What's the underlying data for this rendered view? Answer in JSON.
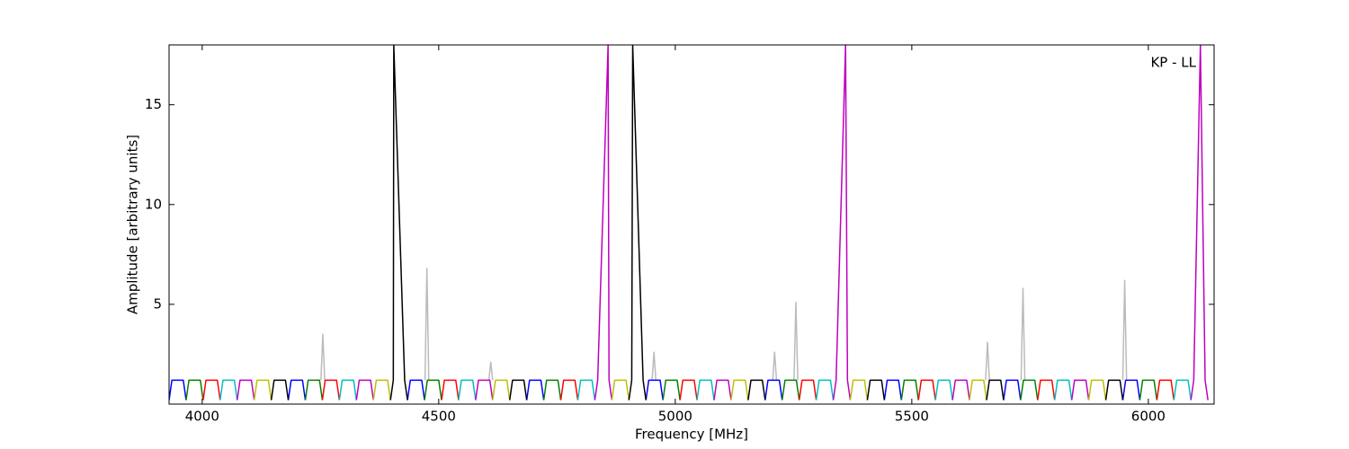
{
  "chart_data": {
    "type": "line",
    "annotation": "KP - LL",
    "x_label": "Frequency [MHz]",
    "y_label": "Amplitude [arbitrary units]",
    "xlim": [
      3930,
      6139
    ],
    "ylim": [
      0,
      18
    ],
    "xticks": [
      4000,
      4500,
      5000,
      5500,
      6000
    ],
    "yticks": [
      5,
      10,
      15
    ],
    "series": [
      {
        "color": "#bbbbbb",
        "x": [
          4251,
          4255,
          4259,
          4259,
          4471,
          4475,
          4479,
          4479,
          4606,
          4610,
          4614,
          4614,
          4951,
          4955,
          4959,
          4959,
          5206,
          5210,
          5214,
          5214,
          5251,
          5255,
          5259,
          5259,
          5656,
          5660,
          5664,
          5664,
          5731,
          5735,
          5739,
          5739,
          5946,
          5950,
          5954
        ],
        "values": [
          1.2,
          3.5,
          1.2,
          null,
          1.2,
          6.8,
          1.2,
          null,
          1.2,
          2.1,
          1.2,
          null,
          1.2,
          2.6,
          1.2,
          null,
          1.2,
          2.6,
          1.2,
          null,
          1.2,
          5.1,
          1.2,
          null,
          1.2,
          3.1,
          1.2,
          null,
          1.2,
          5.8,
          1.2,
          null,
          1.2,
          6.2,
          1.2
        ]
      },
      {
        "color": "#0000ff",
        "x": [
          3930,
          3936,
          3960,
          3966,
          3966,
          4182,
          4188,
          4212,
          4218,
          4218,
          4434,
          4440,
          4464,
          4470,
          4470,
          4686,
          4692,
          4716,
          4722,
          4722,
          4938,
          4944,
          4968,
          4974,
          4974,
          5190,
          5196,
          5220,
          5226,
          5226,
          5442,
          5448,
          5472,
          5478,
          5478,
          5694,
          5700,
          5724,
          5730,
          5730,
          5946,
          5952,
          5976,
          5982
        ],
        "values": [
          0.2,
          1.2,
          1.2,
          0.2,
          null,
          0.2,
          1.2,
          1.2,
          0.2,
          null,
          0.2,
          1.2,
          1.2,
          0.2,
          null,
          0.2,
          1.2,
          1.2,
          0.2,
          null,
          0.2,
          1.2,
          1.2,
          0.2,
          null,
          0.2,
          1.2,
          1.2,
          0.2,
          null,
          0.2,
          1.2,
          1.2,
          0.2,
          null,
          0.2,
          1.2,
          1.2,
          0.2,
          null,
          0.2,
          1.2,
          1.2,
          0.2
        ]
      },
      {
        "color": "#008000",
        "x": [
          3966,
          3972,
          3996,
          4002,
          4002,
          4218,
          4224,
          4248,
          4254,
          4254,
          4470,
          4476,
          4500,
          4506,
          4506,
          4722,
          4728,
          4752,
          4758,
          4758,
          4974,
          4980,
          5004,
          5010,
          5010,
          5226,
          5232,
          5256,
          5262,
          5262,
          5478,
          5484,
          5508,
          5514,
          5514,
          5730,
          5736,
          5760,
          5766,
          5766,
          5982,
          5988,
          6012,
          6018
        ],
        "values": [
          0.2,
          1.2,
          1.2,
          0.2,
          null,
          0.2,
          1.2,
          1.2,
          0.2,
          null,
          0.2,
          1.2,
          1.2,
          0.2,
          null,
          0.2,
          1.2,
          1.2,
          0.2,
          null,
          0.2,
          1.2,
          1.2,
          0.2,
          null,
          0.2,
          1.2,
          1.2,
          0.2,
          null,
          0.2,
          1.2,
          1.2,
          0.2,
          null,
          0.2,
          1.2,
          1.2,
          0.2,
          null,
          0.2,
          1.2,
          1.2,
          0.2
        ]
      },
      {
        "color": "#ff0000",
        "x": [
          4002,
          4008,
          4032,
          4038,
          4038,
          4254,
          4260,
          4284,
          4290,
          4290,
          4506,
          4512,
          4536,
          4542,
          4542,
          4758,
          4764,
          4788,
          4794,
          4794,
          5010,
          5016,
          5040,
          5046,
          5046,
          5262,
          5268,
          5292,
          5298,
          5298,
          5514,
          5520,
          5544,
          5550,
          5550,
          5766,
          5772,
          5796,
          5802,
          5802,
          6018,
          6024,
          6048,
          6054
        ],
        "values": [
          0.2,
          1.2,
          1.2,
          0.2,
          null,
          0.2,
          1.2,
          1.2,
          0.2,
          null,
          0.2,
          1.2,
          1.2,
          0.2,
          null,
          0.2,
          1.2,
          1.2,
          0.2,
          null,
          0.2,
          1.2,
          1.2,
          0.2,
          null,
          0.2,
          1.2,
          1.2,
          0.2,
          null,
          0.2,
          1.2,
          1.2,
          0.2,
          null,
          0.2,
          1.2,
          1.2,
          0.2,
          null,
          0.2,
          1.2,
          1.2,
          0.2
        ]
      },
      {
        "color": "#00bfbf",
        "x": [
          4038,
          4044,
          4068,
          4074,
          4074,
          4290,
          4296,
          4320,
          4326,
          4326,
          4542,
          4548,
          4572,
          4578,
          4578,
          4794,
          4800,
          4824,
          4830,
          4830,
          5046,
          5052,
          5076,
          5082,
          5082,
          5298,
          5304,
          5328,
          5334,
          5334,
          5550,
          5556,
          5580,
          5586,
          5586,
          5802,
          5808,
          5832,
          5838,
          5838,
          6054,
          6060,
          6084,
          6090
        ],
        "values": [
          0.2,
          1.2,
          1.2,
          0.2,
          null,
          0.2,
          1.2,
          1.2,
          0.2,
          null,
          0.2,
          1.2,
          1.2,
          0.2,
          null,
          0.2,
          1.2,
          1.2,
          0.2,
          null,
          0.2,
          1.2,
          1.2,
          0.2,
          null,
          0.2,
          1.2,
          1.2,
          0.2,
          null,
          0.2,
          1.2,
          1.2,
          0.2,
          null,
          0.2,
          1.2,
          1.2,
          0.2,
          null,
          0.2,
          1.2,
          1.2,
          0.2
        ]
      },
      {
        "color": "#bf00bf",
        "x": [
          4074,
          4080,
          4104,
          4110,
          4110,
          4326,
          4332,
          4356,
          4362,
          4362,
          4578,
          4584,
          4608,
          4614,
          4614,
          4830,
          4836,
          4858,
          4860,
          4866,
          4866,
          5082,
          5088,
          5112,
          5118,
          5118,
          5334,
          5340,
          5360,
          5364,
          5370,
          5370,
          5586,
          5592,
          5616,
          5622,
          5622,
          5838,
          5844,
          5868,
          5874,
          5874,
          6090,
          6096,
          6110,
          6120,
          6126
        ],
        "values": [
          0.2,
          1.2,
          1.2,
          0.2,
          null,
          0.2,
          1.2,
          1.2,
          0.2,
          null,
          0.2,
          1.2,
          1.2,
          0.2,
          null,
          0.2,
          1.2,
          18,
          1.2,
          0.2,
          null,
          0.2,
          1.2,
          1.2,
          0.2,
          null,
          0.2,
          1.2,
          18,
          1.2,
          0.2,
          null,
          0.2,
          1.2,
          1.2,
          0.2,
          null,
          0.2,
          1.2,
          1.2,
          0.2,
          null,
          0.2,
          1.2,
          18,
          1.2,
          0.2
        ]
      },
      {
        "color": "#bfbf00",
        "x": [
          4110,
          4116,
          4140,
          4146,
          4146,
          4362,
          4368,
          4392,
          4398,
          4398,
          4614,
          4620,
          4644,
          4650,
          4650,
          4866,
          4872,
          4896,
          4902,
          4902,
          5118,
          5124,
          5148,
          5154,
          5154,
          5370,
          5376,
          5400,
          5406,
          5406,
          5622,
          5628,
          5652,
          5658,
          5658,
          5874,
          5880,
          5904,
          5910
        ],
        "values": [
          0.2,
          1.2,
          1.2,
          0.2,
          null,
          0.2,
          1.2,
          1.2,
          0.2,
          null,
          0.2,
          1.2,
          1.2,
          0.2,
          null,
          0.2,
          1.2,
          1.2,
          0.2,
          null,
          0.2,
          1.2,
          1.2,
          0.2,
          null,
          0.2,
          1.2,
          1.2,
          0.2,
          null,
          0.2,
          1.2,
          1.2,
          0.2,
          null,
          0.2,
          1.2,
          1.2,
          0.2
        ]
      },
      {
        "color": "#000000",
        "x": [
          4146,
          4152,
          4176,
          4182,
          4182,
          4398,
          4404,
          4405,
          4428,
          4434,
          4434,
          4650,
          4656,
          4680,
          4686,
          4686,
          4902,
          4908,
          4910,
          4932,
          4938,
          4938,
          5154,
          5160,
          5184,
          5190,
          5190,
          5406,
          5412,
          5436,
          5442,
          5442,
          5658,
          5664,
          5688,
          5694,
          5694,
          5910,
          5916,
          5940,
          5946
        ],
        "values": [
          0.2,
          1.2,
          1.2,
          0.2,
          null,
          0.2,
          1.2,
          18,
          1.2,
          0.2,
          null,
          0.2,
          1.2,
          1.2,
          0.2,
          null,
          0.2,
          1.2,
          18,
          1.2,
          0.2,
          null,
          0.2,
          1.2,
          1.2,
          0.2,
          null,
          0.2,
          1.2,
          1.2,
          0.2,
          null,
          0.2,
          1.2,
          1.2,
          0.2,
          null,
          0.2,
          1.2,
          1.2,
          0.2
        ]
      }
    ]
  }
}
